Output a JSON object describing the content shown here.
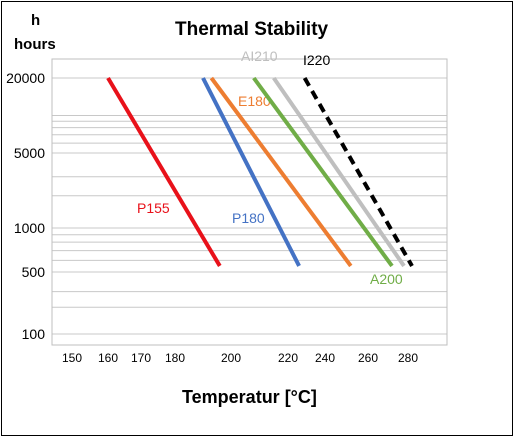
{
  "chart_data": {
    "type": "line",
    "title": "Thermal Stability",
    "xlabel": "Temperatur [°C]",
    "ylabel_symbol": "h",
    "ylabel": "hours",
    "x_ticks": [
      "150",
      "160",
      "170",
      "180",
      "200",
      "220",
      "240",
      "260",
      "280"
    ],
    "y_ticks": [
      "20000",
      "5000",
      "1000",
      "500",
      "100"
    ],
    "grid": "horizontal",
    "series": [
      {
        "name": "P155",
        "color": "#e8111a",
        "dashed": false,
        "points": [
          [
            160,
            20000
          ],
          [
            196,
            550
          ]
        ]
      },
      {
        "name": "P180",
        "color": "#4472c4",
        "dashed": false,
        "points": [
          [
            190,
            20000
          ],
          [
            226,
            550
          ]
        ]
      },
      {
        "name": "E180",
        "color": "#ed7d31",
        "dashed": false,
        "points": [
          [
            193,
            20000
          ],
          [
            252,
            550
          ]
        ]
      },
      {
        "name": "A200",
        "color": "#70ad47",
        "dashed": false,
        "points": [
          [
            208,
            20000
          ],
          [
            272,
            550
          ]
        ]
      },
      {
        "name": "AI210",
        "color": "#bfbfbf",
        "dashed": false,
        "points": [
          [
            215,
            20000
          ],
          [
            278,
            550
          ]
        ]
      },
      {
        "name": "I220",
        "color": "#000000",
        "dashed": true,
        "points": [
          [
            229,
            20000
          ],
          [
            282,
            550
          ]
        ]
      }
    ]
  }
}
